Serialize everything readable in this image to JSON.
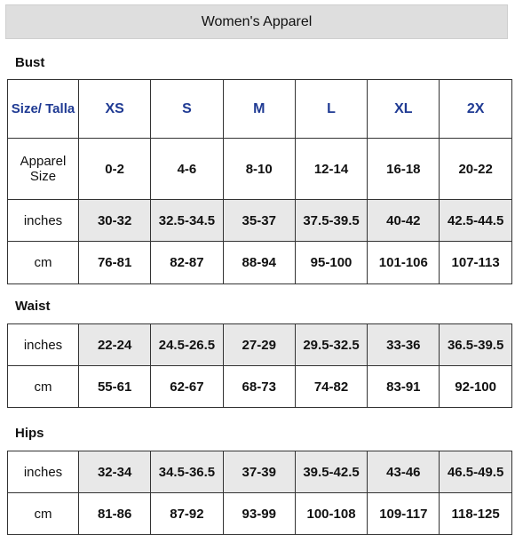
{
  "header": {
    "title": "Women's Apparel"
  },
  "sections": {
    "bust": {
      "label": "Bust",
      "size_label": "Size/ Talla",
      "sizes": [
        "XS",
        "S",
        "M",
        "L",
        "XL",
        "2X"
      ],
      "apparel_size_label": "Apparel Size",
      "apparel_sizes": [
        "0-2",
        "4-6",
        "8-10",
        "12-14",
        "16-18",
        "20-22"
      ],
      "inches_label": "inches",
      "inches": [
        "30-32",
        "32.5-34.5",
        "35-37",
        "37.5-39.5",
        "40-42",
        "42.5-44.5"
      ],
      "cm_label": "cm",
      "cm": [
        "76-81",
        "82-87",
        "88-94",
        "95-100",
        "101-106",
        "107-113"
      ]
    },
    "waist": {
      "label": "Waist",
      "inches_label": "inches",
      "inches": [
        "22-24",
        "24.5-26.5",
        "27-29",
        "29.5-32.5",
        "33-36",
        "36.5-39.5"
      ],
      "cm_label": "cm",
      "cm": [
        "55-61",
        "62-67",
        "68-73",
        "74-82",
        "83-91",
        "92-100"
      ]
    },
    "hips": {
      "label": "Hips",
      "inches_label": "inches",
      "inches": [
        "32-34",
        "34.5-36.5",
        "37-39",
        "39.5-42.5",
        "43-46",
        "46.5-49.5"
      ],
      "cm_label": "cm",
      "cm": [
        "81-86",
        "87-92",
        "93-99",
        "100-108",
        "109-117",
        "118-125"
      ]
    }
  }
}
